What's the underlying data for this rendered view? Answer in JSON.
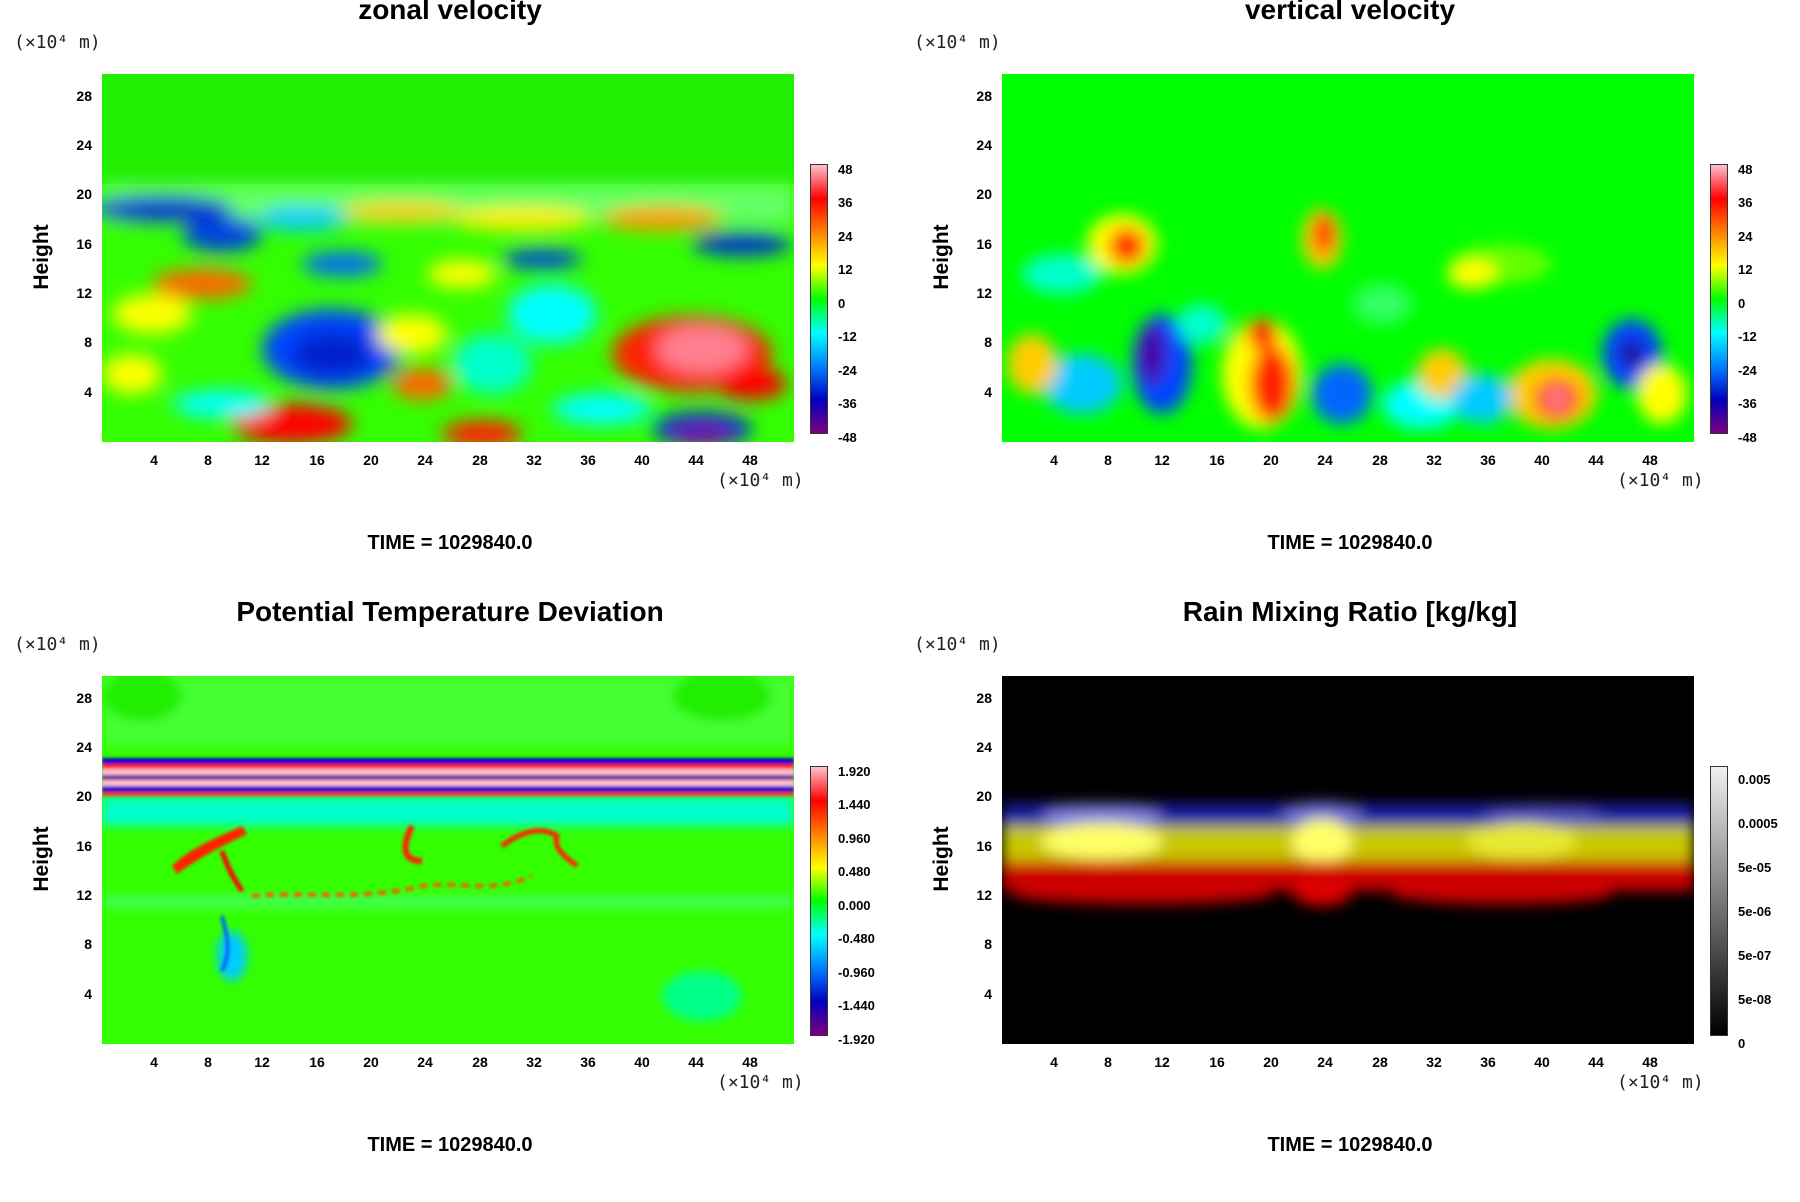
{
  "chart_data": [
    {
      "type": "heatmap",
      "title": "zonal velocity",
      "ylabel": "Height",
      "y_unit": "(×10⁴ m)",
      "x_unit": "(×10⁴ m)",
      "x_ticks": [
        "4",
        "8",
        "12",
        "16",
        "20",
        "24",
        "28",
        "32",
        "36",
        "40",
        "44",
        "48"
      ],
      "y_ticks": [
        "28",
        "24",
        "20",
        "16",
        "12",
        "8",
        "4"
      ],
      "x_range": [
        0,
        51
      ],
      "y_range": [
        0,
        30
      ],
      "colorbar": {
        "labels": [
          "48",
          "36",
          "24",
          "12",
          "0",
          "-12",
          "-24",
          "-36",
          "-48"
        ],
        "range": [
          -48,
          48
        ],
        "colors": [
          "#ffc0d0",
          "#ff0000",
          "#ff8000",
          "#ffff00",
          "#00ff00",
          "#00ffff",
          "#0080ff",
          "#0000c0",
          "#800080"
        ]
      },
      "background": "#33ff00",
      "time": "TIME = 1029840.0"
    },
    {
      "type": "heatmap",
      "title": "vertical velocity",
      "ylabel": "Height",
      "y_unit": "(×10⁴ m)",
      "x_unit": "(×10⁴ m)",
      "x_ticks": [
        "4",
        "8",
        "12",
        "16",
        "20",
        "24",
        "28",
        "32",
        "36",
        "40",
        "44",
        "48"
      ],
      "y_ticks": [
        "28",
        "24",
        "20",
        "16",
        "12",
        "8",
        "4"
      ],
      "x_range": [
        0,
        51
      ],
      "y_range": [
        0,
        30
      ],
      "colorbar": {
        "labels": [
          "48",
          "36",
          "24",
          "12",
          "0",
          "-12",
          "-24",
          "-36",
          "-48"
        ],
        "range": [
          -48,
          48
        ],
        "colors": [
          "#ffc0d0",
          "#ff0000",
          "#ff8000",
          "#ffff00",
          "#00ff00",
          "#00ffff",
          "#0080ff",
          "#0000c0",
          "#800080"
        ]
      },
      "background": "#00ff00",
      "time": "TIME = 1029840.0"
    },
    {
      "type": "heatmap",
      "title": "Potential Temperature Deviation",
      "ylabel": "Height",
      "y_unit": "(×10⁴ m)",
      "x_unit": "(×10⁴ m)",
      "x_ticks": [
        "4",
        "8",
        "12",
        "16",
        "20",
        "24",
        "28",
        "32",
        "36",
        "40",
        "44",
        "48"
      ],
      "y_ticks": [
        "28",
        "24",
        "20",
        "16",
        "12",
        "8",
        "4"
      ],
      "x_range": [
        0,
        51
      ],
      "y_range": [
        0,
        30
      ],
      "colorbar": {
        "labels": [
          "1.920",
          "1.440",
          "0.960",
          "0.480",
          "0.000",
          "-0.480",
          "-0.960",
          "-1.440",
          "-1.920"
        ],
        "range": [
          -1.92,
          1.92
        ],
        "colors": [
          "#ffc0d0",
          "#ff0000",
          "#ff8000",
          "#ffff00",
          "#00ff00",
          "#00ffff",
          "#0080ff",
          "#0000c0",
          "#800080"
        ]
      },
      "background": "#33ff00",
      "time": "TIME = 1029840.0"
    },
    {
      "type": "heatmap",
      "title": "Rain Mixing Ratio [kg/kg]",
      "ylabel": "Height",
      "y_unit": "(×10⁴ m)",
      "x_unit": "(×10⁴ m)",
      "x_ticks": [
        "4",
        "8",
        "12",
        "16",
        "20",
        "24",
        "28",
        "32",
        "36",
        "40",
        "44",
        "48"
      ],
      "y_ticks": [
        "28",
        "24",
        "20",
        "16",
        "12",
        "8",
        "4"
      ],
      "x_range": [
        0,
        51
      ],
      "y_range": [
        0,
        30
      ],
      "colorbar": {
        "labels": [
          "0.005",
          "0.0005",
          "5e-05",
          "5e-06",
          "5e-07",
          "5e-08",
          "0"
        ],
        "scale": "log",
        "colors": [
          "#f0f0f0",
          "#c8c8c8",
          "#a0a0a0",
          "#787878",
          "#505050",
          "#282828",
          "#000000"
        ]
      },
      "background": "#000000",
      "time": "TIME = 1029840.0"
    }
  ]
}
